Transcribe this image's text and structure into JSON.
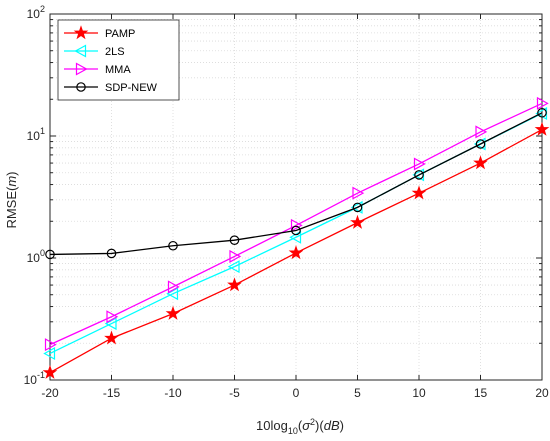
{
  "chart_data": {
    "type": "line",
    "x": [
      -20,
      -15,
      -10,
      -5,
      0,
      5,
      10,
      15,
      20
    ],
    "xlim": [
      -20,
      20
    ],
    "ylim": [
      0.1,
      100
    ],
    "yscale": "log",
    "xticks": [
      "-20",
      "-15",
      "-10",
      "-5",
      "0",
      "5",
      "10",
      "15",
      "20"
    ],
    "ytick_exponents": [
      "-1",
      "0",
      "1",
      "2"
    ],
    "ylabel": {
      "prefix": "RMSE(",
      "var": "m",
      "suffix": ")"
    },
    "xlabel": {
      "pre": "10log",
      "sub": "10",
      "mid": "(",
      "sigma": "σ",
      "sup": "2",
      "mid2": ")(",
      "unit": "dB",
      "post": ")"
    },
    "grid": true,
    "legend_position": "top-left",
    "series": [
      {
        "name": "PAMP",
        "color": "#ff0000",
        "marker": "star",
        "values": [
          0.115,
          0.22,
          0.35,
          0.6,
          1.1,
          1.95,
          3.4,
          6.0,
          11.3
        ]
      },
      {
        "name": "2LS",
        "color": "#00ffff",
        "marker": "triangle-left",
        "values": [
          0.165,
          0.29,
          0.51,
          0.85,
          1.48,
          2.6,
          4.8,
          8.6,
          15.3
        ]
      },
      {
        "name": "MMA",
        "color": "#ff00ff",
        "marker": "triangle-right",
        "values": [
          0.195,
          0.33,
          0.58,
          1.03,
          1.85,
          3.4,
          5.9,
          10.8,
          18.5
        ]
      },
      {
        "name": "SDP-NEW",
        "color": "#000000",
        "marker": "circle",
        "values": [
          1.07,
          1.09,
          1.26,
          1.4,
          1.68,
          2.6,
          4.8,
          8.6,
          15.5
        ]
      }
    ]
  }
}
